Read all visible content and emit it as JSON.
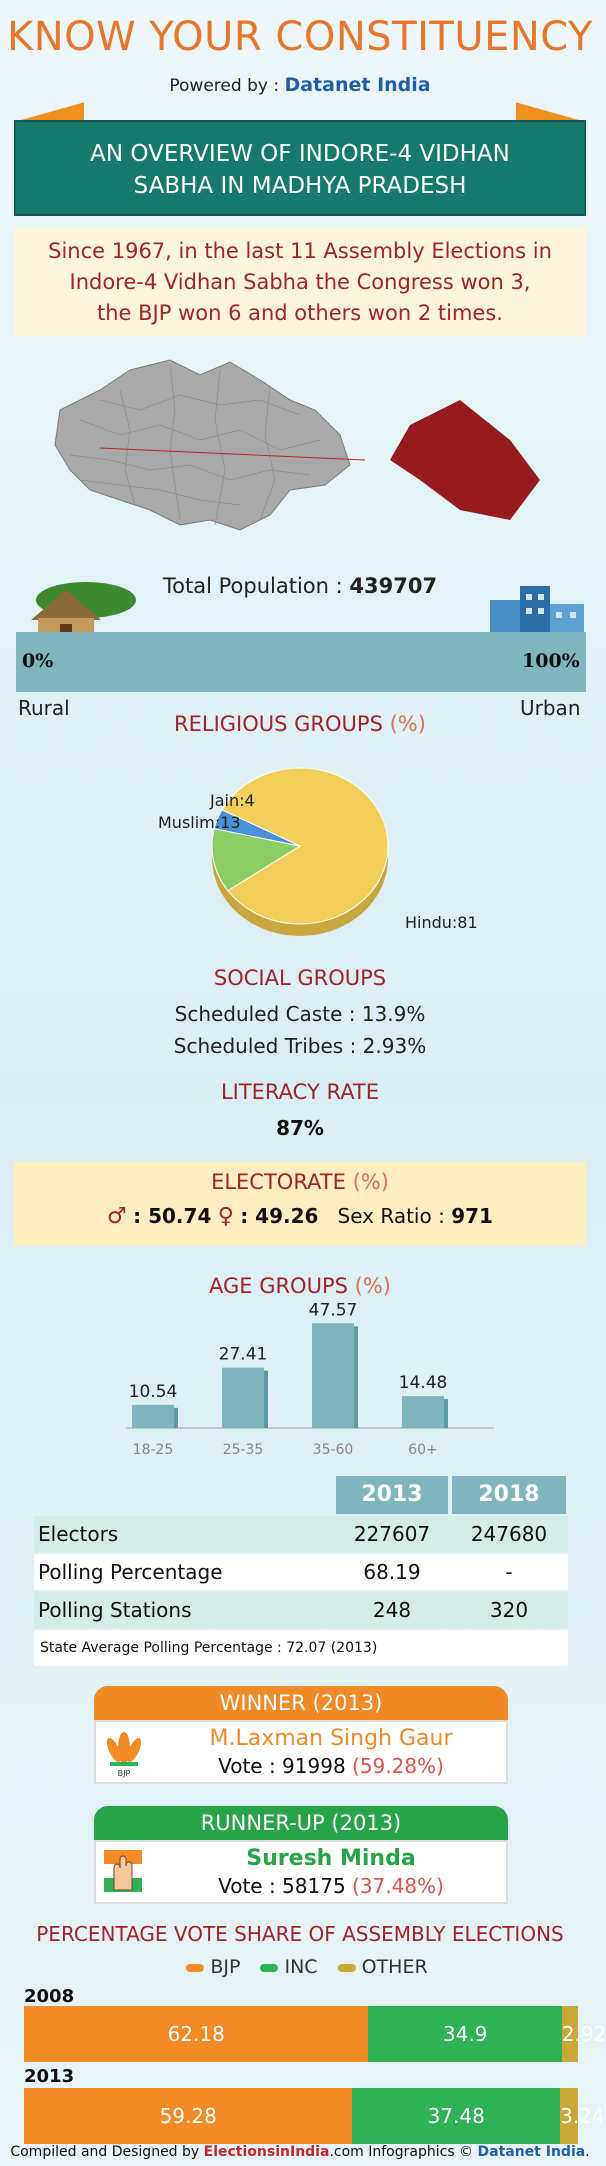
{
  "header": {
    "title": "KNOW YOUR CONSTITUENCY",
    "powered_prefix": "Powered by :",
    "powered_brand": "Datanet India",
    "overview_line1": "AN OVERVIEW OF INDORE-4 VIDHAN",
    "overview_line2": "SABHA IN MADHYA PRADESH"
  },
  "summary": {
    "line1": "Since 1967, in the last 11 Assembly Elections in",
    "line2": "Indore-4 Vidhan Sabha the Congress won 3,",
    "line3": "the BJP won 6 and others won 2 times."
  },
  "population": {
    "label": "Total Population :",
    "value": "439707",
    "left_pct": "0%",
    "right_pct": "100%",
    "rural_label": "Rural",
    "urban_label": "Urban",
    "urban_fraction": 1.0
  },
  "religious": {
    "heading": "RELIGIOUS GROUPS",
    "unit": "(%)"
  },
  "chart_data": [
    {
      "type": "pie",
      "title": "RELIGIOUS GROUPS (%)",
      "slices": [
        {
          "label": "Hindu",
          "value": 81,
          "text": "Hindu:81",
          "color": "#f2cf5b"
        },
        {
          "label": "Muslim",
          "value": 13,
          "text": "Muslim:13",
          "color": "#8dce64"
        },
        {
          "label": "Jain",
          "value": 4,
          "text": "Jain:4",
          "color": "#4a90d9"
        }
      ]
    },
    {
      "type": "bar",
      "title": "AGE GROUPS (%)",
      "categories": [
        "18-25",
        "25-35",
        "35-60",
        "60+"
      ],
      "values": [
        10.54,
        27.41,
        47.57,
        14.48
      ],
      "ylim": [
        0,
        50
      ]
    },
    {
      "type": "bar",
      "title": "PERCENTAGE VOTE SHARE OF ASSEMBLY ELECTIONS",
      "stacked": true,
      "orientation": "horizontal",
      "categories": [
        "2008",
        "2013"
      ],
      "series": [
        {
          "name": "BJP",
          "values": [
            62.18,
            59.28
          ],
          "color": "#f28a27"
        },
        {
          "name": "INC",
          "values": [
            34.9,
            37.48
          ],
          "color": "#2fb156"
        },
        {
          "name": "OTHER",
          "values": [
            2.92,
            3.24
          ],
          "color": "#c9a83a"
        }
      ]
    }
  ],
  "social": {
    "heading": "SOCIAL GROUPS",
    "sc_label": "Scheduled Caste :",
    "sc_value": "13.9%",
    "st_label": "Scheduled Tribes :",
    "st_value": "2.93%"
  },
  "literacy": {
    "heading": "LITERACY RATE",
    "value": "87%"
  },
  "electorate": {
    "heading": "ELECTORATE",
    "unit": "(%)",
    "male": ": 50.74",
    "female": ": 49.26",
    "sex_ratio_label": "Sex Ratio :",
    "sex_ratio_value": "971"
  },
  "age": {
    "heading": "AGE GROUPS",
    "unit": "(%)"
  },
  "table": {
    "col1": "2013",
    "col2": "2018",
    "rows": [
      {
        "label": "Electors",
        "v2013": "227607",
        "v2018": "247680"
      },
      {
        "label": "Polling Percentage",
        "v2013": "68.19",
        "v2018": "-"
      },
      {
        "label": "Polling Stations",
        "v2013": "248",
        "v2018": "320"
      }
    ],
    "state_avg": "State Average Polling Percentage : 72.07 (2013)"
  },
  "winner": {
    "heading": "WINNER",
    "year": "(2013)",
    "name": "M.Laxman Singh Gaur",
    "vote_label": "Vote : 91998",
    "vote_pct": "(59.28%)",
    "party_text": "BJP"
  },
  "runner": {
    "heading": "RUNNER-UP",
    "year": "(2013)",
    "name": "Suresh Minda",
    "vote_label": "Vote : 58175",
    "vote_pct": "(37.48%)"
  },
  "votes": {
    "heading": "PERCENTAGE VOTE SHARE OF ASSEMBLY ELECTIONS",
    "legend": [
      "BJP",
      "INC",
      "OTHER"
    ],
    "y2008": "2008",
    "y2013": "2013",
    "v2008": [
      "62.18",
      "34.9",
      "2.92"
    ],
    "v2013": [
      "59.28",
      "37.48",
      "3.24"
    ]
  },
  "footer": {
    "compiled": "Compiled and Designed by",
    "brand1a": "Elections",
    "brand1b": "in",
    "brand1c": "India",
    "brand1d": ".com",
    "infographics": "Infographics ©",
    "brand2": "Datanet India",
    "brand2_dot": "."
  },
  "colors": {
    "accent_orange": "#e8752a",
    "heading_red": "#a3232a",
    "teal": "#157a6b",
    "bar_teal": "#7fb6bd"
  }
}
